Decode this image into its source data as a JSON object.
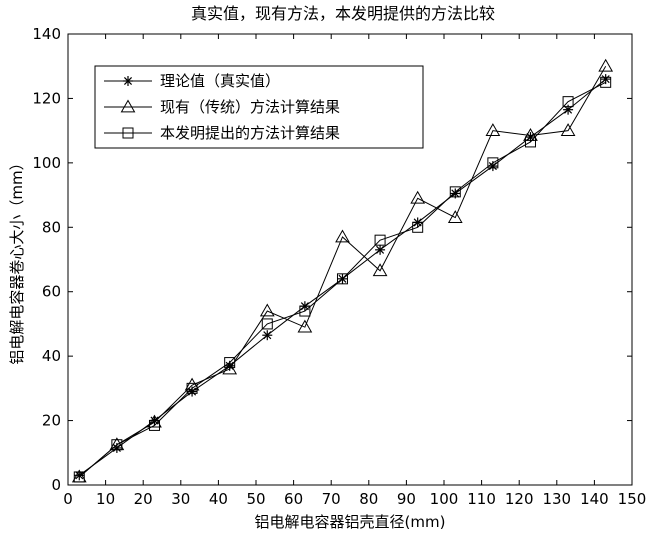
{
  "chart_data": {
    "type": "line",
    "title": "真实值，现有方法，本发明提供的方法比较",
    "xlabel": "铝电解电容器铝壳直径(mm)",
    "ylabel": "铝电解电容器卷心大小（mm）",
    "xlim": [
      0,
      150
    ],
    "ylim": [
      0,
      140
    ],
    "xticks": [
      0,
      10,
      20,
      30,
      40,
      50,
      60,
      70,
      80,
      90,
      100,
      110,
      120,
      130,
      140,
      150
    ],
    "yticks": [
      0,
      20,
      40,
      60,
      80,
      100,
      120,
      140
    ],
    "grid": false,
    "legend_position": "top-left",
    "x": [
      3,
      13,
      23,
      33,
      43,
      53,
      63,
      73,
      83,
      93,
      103,
      113,
      123,
      133,
      143
    ],
    "series": [
      {
        "name": "理论值（真实值）",
        "marker": "asterisk",
        "values": [
          3,
          11.5,
          20,
          29,
          37,
          46.5,
          55.5,
          64,
          73,
          81.5,
          90.5,
          99,
          108,
          116.5,
          126
        ]
      },
      {
        "name": "现有（传统）方法计算结果",
        "marker": "triangle",
        "values": [
          2.5,
          12.5,
          19.5,
          31,
          36,
          54,
          49,
          77,
          66.5,
          89,
          83,
          110,
          108.5,
          110,
          130
        ]
      },
      {
        "name": "本发明提出的方法计算结果",
        "marker": "square",
        "values": [
          2.5,
          12.5,
          18.5,
          30,
          38,
          50,
          54,
          64,
          76,
          80,
          91,
          100,
          106.5,
          119,
          125
        ]
      }
    ]
  }
}
